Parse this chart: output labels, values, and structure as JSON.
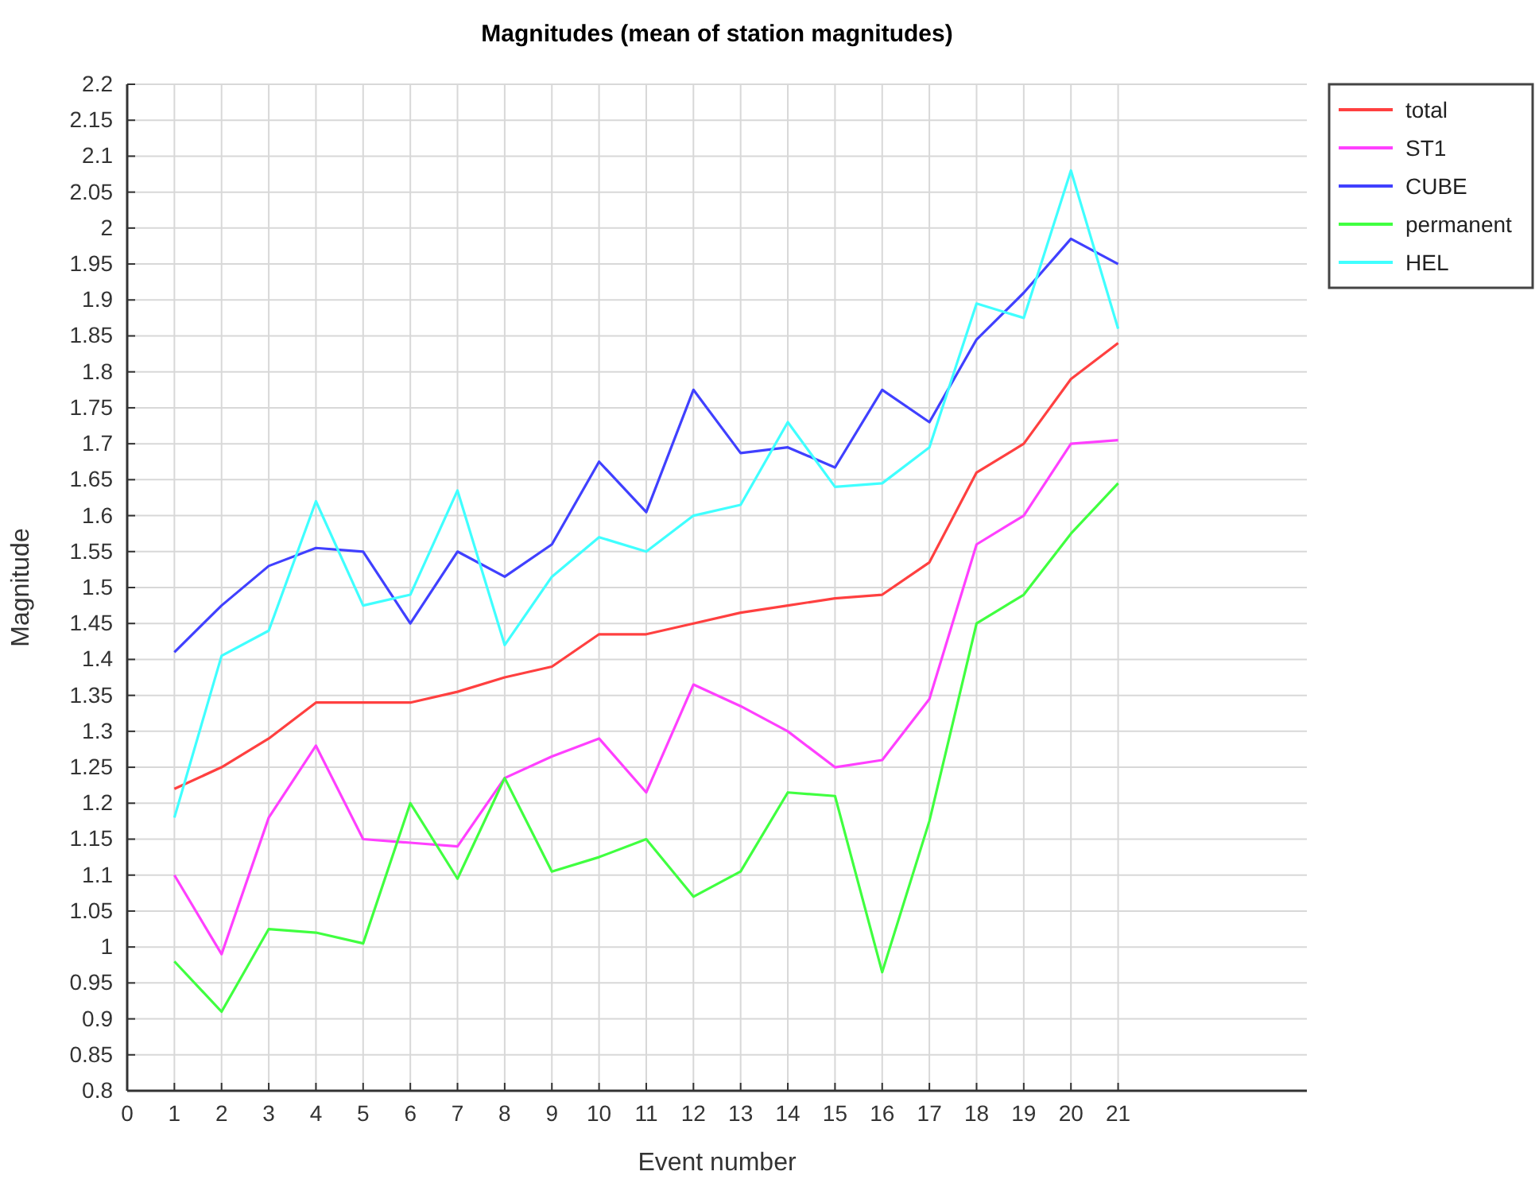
{
  "chart_data": {
    "type": "line",
    "title": "Magnitudes (mean of station magnitudes)",
    "xlabel": "Event number",
    "ylabel": "Magnitude",
    "x": [
      1,
      2,
      3,
      4,
      5,
      6,
      7,
      8,
      9,
      10,
      11,
      12,
      13,
      14,
      15,
      16,
      17,
      18,
      19,
      20,
      21
    ],
    "series": [
      {
        "name": "total",
        "color": "#ff4040",
        "values": [
          1.22,
          1.25,
          1.29,
          1.34,
          1.34,
          1.34,
          1.355,
          1.375,
          1.39,
          1.435,
          1.435,
          1.45,
          1.465,
          1.475,
          1.485,
          1.49,
          1.535,
          1.66,
          1.7,
          1.79,
          1.84
        ]
      },
      {
        "name": "ST1",
        "color": "#ff40ff",
        "values": [
          1.1,
          0.99,
          1.18,
          1.28,
          1.15,
          1.145,
          1.14,
          1.235,
          1.265,
          1.29,
          1.215,
          1.365,
          1.335,
          1.3,
          1.25,
          1.26,
          1.345,
          1.56,
          1.6,
          1.7,
          1.705
        ]
      },
      {
        "name": "CUBE",
        "color": "#4040ff",
        "values": [
          1.41,
          1.475,
          1.53,
          1.555,
          1.55,
          1.45,
          1.55,
          1.515,
          1.56,
          1.675,
          1.605,
          1.775,
          1.687,
          1.695,
          1.667,
          1.775,
          1.73,
          1.845,
          1.91,
          1.985,
          1.95
        ]
      },
      {
        "name": "permanent",
        "color": "#40ff40",
        "values": [
          0.98,
          0.91,
          1.025,
          1.02,
          1.005,
          1.2,
          1.095,
          1.235,
          1.105,
          1.125,
          1.15,
          1.07,
          1.105,
          1.215,
          1.21,
          0.965,
          1.175,
          1.45,
          1.49,
          1.575,
          1.645
        ]
      },
      {
        "name": "HEL",
        "color": "#40ffff",
        "values": [
          1.18,
          1.405,
          1.44,
          1.62,
          1.475,
          1.49,
          1.635,
          1.42,
          1.515,
          1.57,
          1.55,
          1.6,
          1.615,
          1.73,
          1.64,
          1.645,
          1.695,
          1.895,
          1.875,
          2.08,
          1.86
        ]
      }
    ],
    "xlim": [
      0,
      25
    ],
    "xticks": [
      0,
      1,
      2,
      3,
      4,
      5,
      6,
      7,
      8,
      9,
      10,
      11,
      12,
      13,
      14,
      15,
      16,
      17,
      18,
      19,
      20,
      21
    ],
    "ylim": [
      0.8,
      2.2
    ],
    "yticks": [
      0.8,
      0.85,
      0.9,
      0.95,
      1,
      1.05,
      1.1,
      1.15,
      1.2,
      1.25,
      1.3,
      1.35,
      1.4,
      1.45,
      1.5,
      1.55,
      1.6,
      1.65,
      1.7,
      1.75,
      1.8,
      1.85,
      1.9,
      1.95,
      2,
      2.05,
      2.1,
      2.15,
      2.2
    ],
    "grid": true,
    "legend": "top right",
    "marker": "none",
    "line_style": "solid"
  }
}
